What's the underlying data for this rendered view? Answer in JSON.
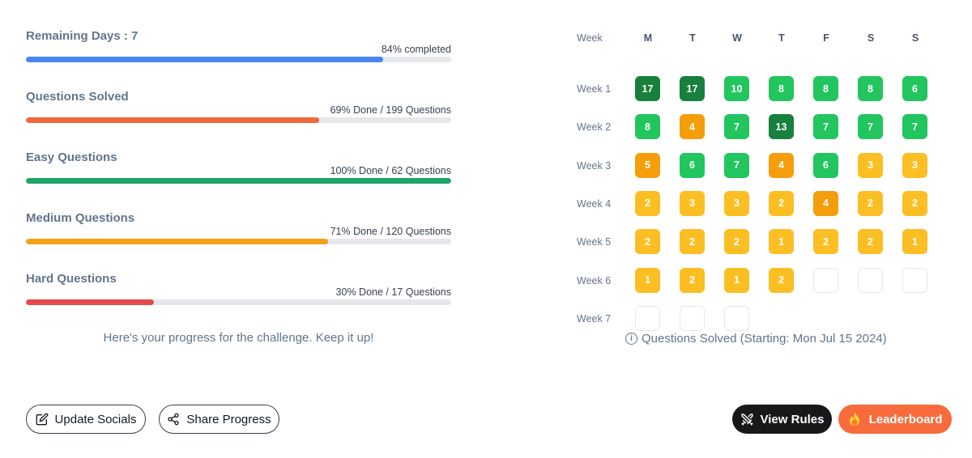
{
  "progress": [
    {
      "label": "Remaining Days : 7",
      "status": "84% completed",
      "fraction": 0.84,
      "color": "#4a86f0"
    },
    {
      "label": "Questions Solved",
      "status": "69% Done / 199 Questions",
      "fraction": 0.69,
      "color": "#ef6a3a"
    },
    {
      "label": "Easy Questions",
      "status": "100% Done / 62 Questions",
      "fraction": 1.0,
      "color": "#1fa36a"
    },
    {
      "label": "Medium Questions",
      "status": "71% Done / 120 Questions",
      "fraction": 0.71,
      "color": "#f5a21a"
    },
    {
      "label": "Hard Questions",
      "status": "30% Done / 17 Questions",
      "fraction": 0.3,
      "color": "#e54848"
    }
  ],
  "progress_message": "Here's your progress for the challenge. Keep it up!",
  "calendar": {
    "corner_label": "Week",
    "days": [
      "M",
      "T",
      "W",
      "T",
      "F",
      "S",
      "S"
    ],
    "weeks": [
      {
        "label": "Week 1",
        "cells": [
          17,
          17,
          10,
          8,
          8,
          8,
          6
        ]
      },
      {
        "label": "Week 2",
        "cells": [
          8,
          4,
          7,
          13,
          7,
          7,
          7
        ]
      },
      {
        "label": "Week 3",
        "cells": [
          5,
          6,
          7,
          4,
          6,
          3,
          3
        ]
      },
      {
        "label": "Week 4",
        "cells": [
          2,
          3,
          3,
          2,
          4,
          2,
          2
        ]
      },
      {
        "label": "Week 5",
        "cells": [
          2,
          2,
          2,
          1,
          2,
          2,
          1
        ]
      },
      {
        "label": "Week 6",
        "cells": [
          1,
          2,
          1,
          2,
          null,
          null,
          null
        ]
      },
      {
        "label": "Week 7",
        "cells": [
          null,
          null,
          null
        ]
      }
    ],
    "caption": "Questions Solved (Starting: Mon Jul 15 2024)",
    "colors": {
      "dark_green": "#17803d",
      "green": "#22c55e",
      "orange": "#f59e0b",
      "yellow": "#fbbf24"
    }
  },
  "buttons": {
    "update_socials": "Update Socials",
    "share_progress": "Share Progress",
    "view_rules": "View Rules",
    "leaderboard": "Leaderboard"
  },
  "icons": {
    "update_socials": "edit-icon",
    "share_progress": "share-icon",
    "view_rules": "rules-icon",
    "leaderboard": "fire-icon"
  }
}
